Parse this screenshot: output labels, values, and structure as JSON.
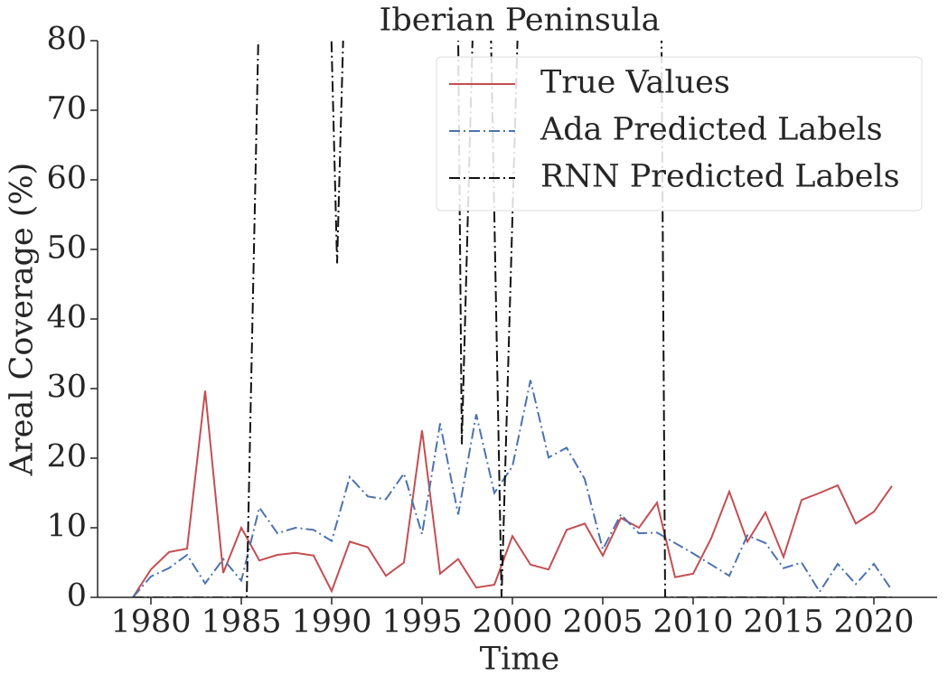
{
  "chart_data": {
    "type": "line",
    "title": "Iberian Peninsula",
    "xlabel": "Time",
    "ylabel": "Areal Coverage (%)",
    "x": [
      1979,
      1980,
      1981,
      1982,
      1983,
      1984,
      1985,
      1986,
      1987,
      1988,
      1989,
      1990,
      1991,
      1992,
      1993,
      1994,
      1995,
      1996,
      1997,
      1998,
      1999,
      2000,
      2001,
      2002,
      2003,
      2004,
      2005,
      2006,
      2007,
      2008,
      2009,
      2010,
      2011,
      2012,
      2013,
      2014,
      2015,
      2016,
      2017,
      2018,
      2019,
      2020,
      2021
    ],
    "series": [
      {
        "name": "True Values",
        "color": "#c44e52",
        "dash": "solid",
        "values": [
          0,
          4,
          6.5,
          7,
          29.7,
          3.5,
          10,
          5.3,
          6.1,
          6.4,
          6,
          0.9,
          8,
          7.2,
          3.1,
          5,
          24,
          3.4,
          5.5,
          1.4,
          1.8,
          8.8,
          4.7,
          4,
          9.7,
          10.6,
          6,
          11.4,
          10,
          13.6,
          2.9,
          3.4,
          8.5,
          15.2,
          8,
          12.2,
          5.8,
          14,
          15,
          16.1,
          10.6,
          12.3,
          16
        ]
      },
      {
        "name": "Ada Predicted Labels",
        "color": "#4c72b0",
        "dash": "dashdot",
        "values": [
          0,
          3,
          4.2,
          6.1,
          2,
          5.5,
          2.4,
          12.9,
          9.2,
          10,
          9.7,
          8.1,
          17.3,
          14.5,
          14.1,
          17.8,
          9.1,
          25,
          11.9,
          26.3,
          15,
          18.8,
          31.2,
          20.1,
          21.5,
          17,
          6.9,
          11.9,
          9.2,
          9.3,
          7.8,
          6.3,
          4.7,
          3.1,
          8.9,
          7.8,
          4.2,
          5,
          0.8,
          4.8,
          1.9,
          4.8,
          1
        ]
      },
      {
        "name": "RNN Predicted Labels",
        "color": "#111111",
        "dash": "dashdot",
        "x": [
          1979,
          1985.3,
          1986.3,
          1989.6,
          1990.3,
          1991,
          1996.9,
          1997.2,
          1998.2,
          1998.6,
          1999.4,
          2000.5,
          2008.2,
          2008.45,
          2021
        ],
        "values": [
          0,
          0,
          125,
          120,
          48,
          115,
          110,
          22,
          120,
          110,
          0,
          100,
          100,
          0,
          0
        ]
      }
    ],
    "xlim": [
      1977.05,
      2023.5
    ],
    "ylim": [
      0,
      80
    ],
    "xticks": [
      1980,
      1985,
      1990,
      1995,
      2000,
      2005,
      2010,
      2015,
      2020
    ],
    "yticks": [
      0,
      10,
      20,
      30,
      40,
      50,
      60,
      70,
      80
    ],
    "legend": "upper right"
  }
}
